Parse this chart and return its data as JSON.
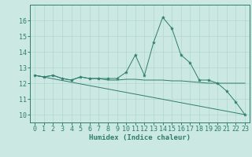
{
  "xlabel": "Humidex (Indice chaleur)",
  "bg_color": "#cce8e2",
  "line_color": "#2e7d6e",
  "grid_color": "#b0d8d0",
  "xlim": [
    -0.5,
    23.5
  ],
  "ylim": [
    9.5,
    17.0
  ],
  "yticks": [
    10,
    11,
    12,
    13,
    14,
    15,
    16
  ],
  "xticks": [
    0,
    1,
    2,
    3,
    4,
    5,
    6,
    7,
    8,
    9,
    10,
    11,
    12,
    13,
    14,
    15,
    16,
    17,
    18,
    19,
    20,
    21,
    22,
    23
  ],
  "curve_x": [
    0,
    1,
    2,
    3,
    4,
    5,
    6,
    7,
    8,
    9,
    10,
    11,
    12,
    13,
    14,
    15,
    16,
    17,
    18,
    19,
    20,
    21,
    22,
    23
  ],
  "curve_y": [
    12.5,
    12.4,
    12.5,
    12.3,
    12.2,
    12.4,
    12.3,
    12.3,
    12.3,
    12.3,
    12.7,
    13.8,
    12.5,
    14.6,
    16.2,
    15.5,
    13.8,
    13.3,
    12.2,
    12.2,
    12.0,
    11.5,
    10.8,
    10.0
  ],
  "flat_x": [
    0,
    1,
    2,
    3,
    4,
    5,
    6,
    7,
    8,
    9,
    10,
    11,
    12,
    13,
    14,
    15,
    16,
    17,
    18,
    19,
    20,
    21,
    22,
    23
  ],
  "flat_y": [
    12.5,
    12.4,
    12.5,
    12.3,
    12.2,
    12.4,
    12.3,
    12.3,
    12.2,
    12.2,
    12.25,
    12.25,
    12.2,
    12.2,
    12.2,
    12.15,
    12.15,
    12.1,
    12.05,
    12.0,
    12.0,
    12.0,
    12.0,
    12.0
  ],
  "trend_x": [
    0,
    23
  ],
  "trend_y": [
    12.5,
    10.0
  ],
  "xlabel_fontsize": 6.5,
  "tick_fontsize": 6.0
}
